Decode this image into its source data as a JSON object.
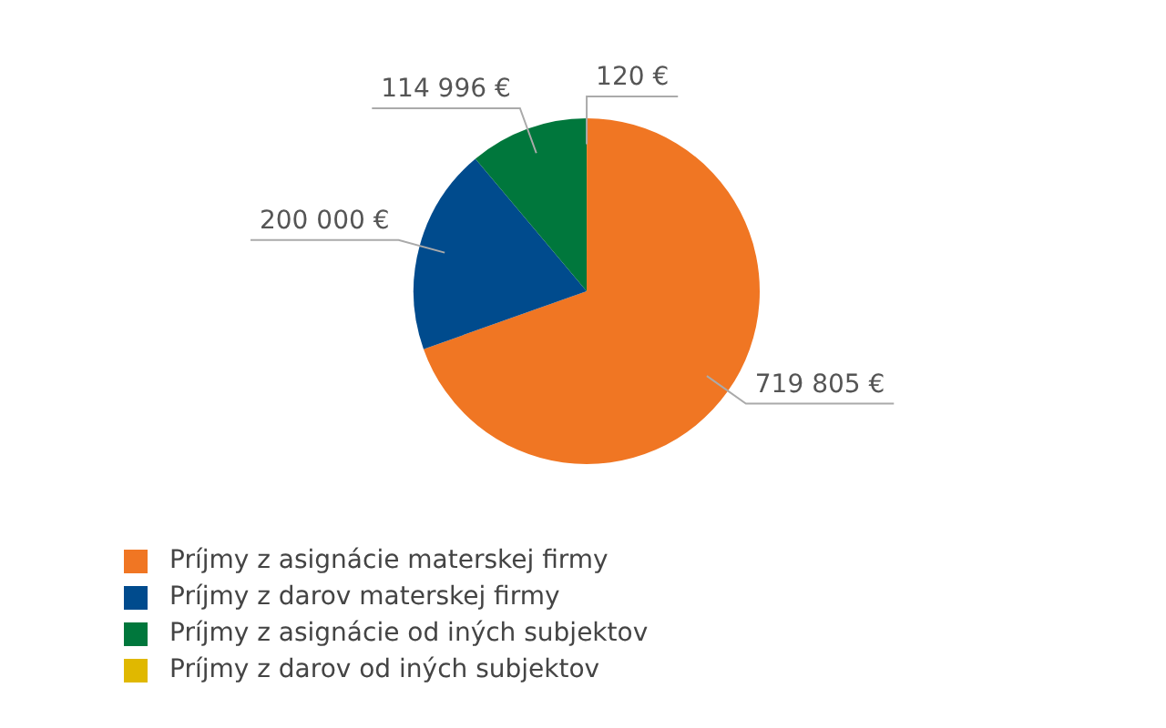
{
  "chart_data": {
    "type": "pie",
    "categories": [
      "Príjmy z asignácie materskej firmy",
      "Príjmy z darov materskej firmy",
      "Príjmy z asignácie od iných subjektov",
      "Príjmy z darov od iných subjektov"
    ],
    "values": [
      719805,
      200000,
      114996,
      120
    ],
    "value_labels": [
      "719 805 €",
      "200 000 €",
      "114 996 €",
      "120 €"
    ],
    "colors": [
      "#f07623",
      "#004b8d",
      "#00773c",
      "#e0b800"
    ],
    "legend": "bottom left"
  }
}
